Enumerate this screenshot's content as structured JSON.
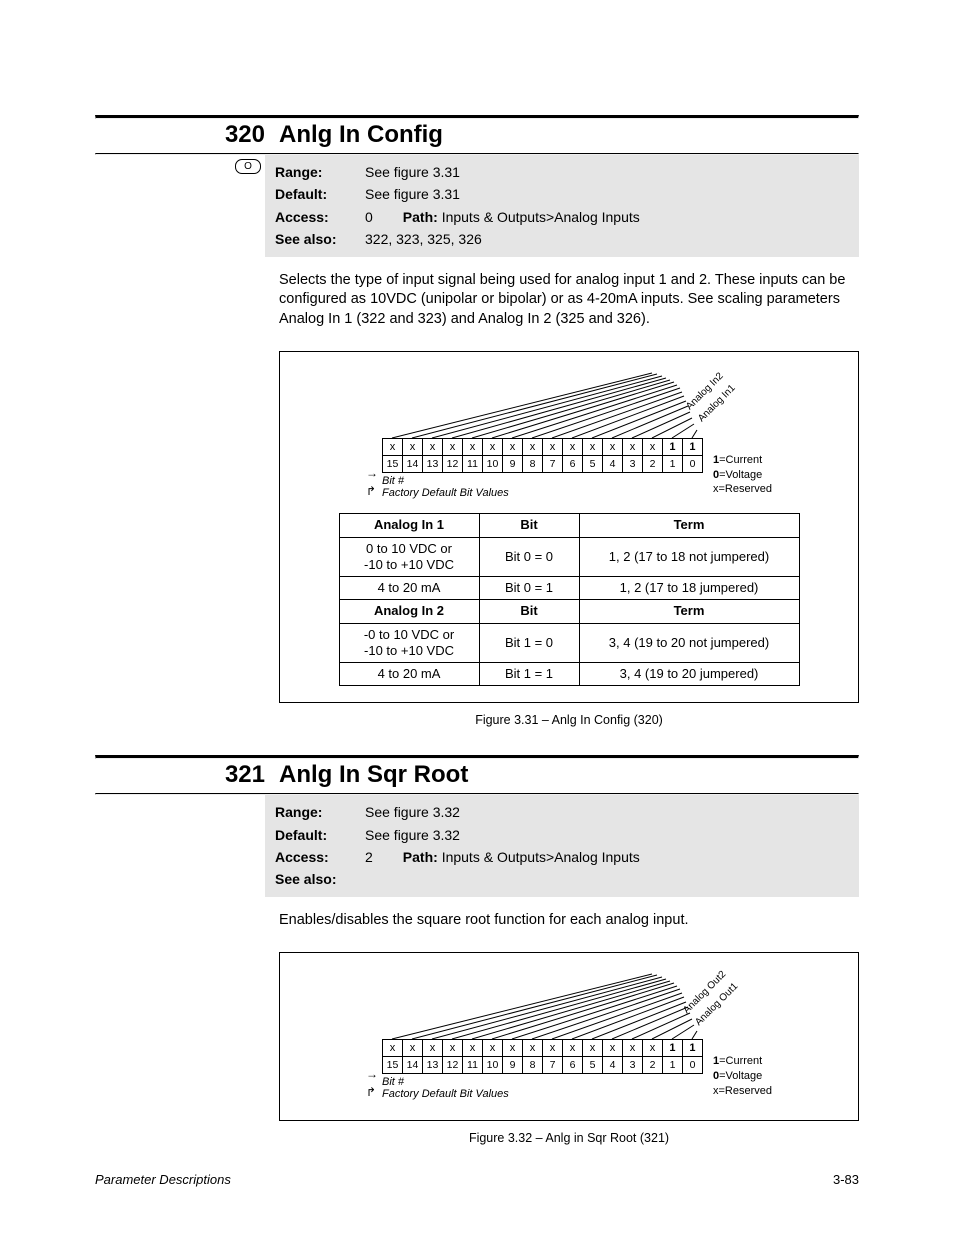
{
  "params": [
    {
      "num": "320",
      "title": "Anlg In Config",
      "hasIcon": true,
      "range": "See figure 3.31",
      "default": "See figure 3.31",
      "access": "0",
      "path": "Inputs & Outputs>Analog Inputs",
      "seeAlso": "322, 323, 325, 326",
      "desc": "Selects the type of input signal being used for analog input 1 and 2. These inputs can be configured as 10VDC (unipolar or bipolar) or as 4-20mA inputs. See scaling parameters Analog In 1 (322 and 323) and Analog In 2 (325 and 326).",
      "bitDiagram": {
        "topRow": [
          "x",
          "x",
          "x",
          "x",
          "x",
          "x",
          "x",
          "x",
          "x",
          "x",
          "x",
          "x",
          "x",
          "x",
          "1",
          "1"
        ],
        "numRow": [
          "15",
          "14",
          "13",
          "12",
          "11",
          "10",
          "9",
          "8",
          "7",
          "6",
          "5",
          "4",
          "3",
          "2",
          "1",
          "0"
        ],
        "bitLabel": "Bit #",
        "factoryLabel": "Factory Default Bit Values",
        "axisLabels": [
          "Analog In2",
          "Analog In1"
        ],
        "legend": [
          {
            "k": "1",
            "v": "Current"
          },
          {
            "k": "0",
            "v": "Voltage"
          },
          {
            "k": "x",
            "v": "Reserved"
          }
        ]
      },
      "cfgTable": {
        "sections": [
          {
            "header": [
              "Analog In 1",
              "Bit",
              "Term"
            ],
            "rows": [
              [
                "0 to 10 VDC or\n-10 to +10 VDC",
                "Bit 0 = 0",
                "1, 2 (17 to 18 not jumpered)"
              ],
              [
                "4 to 20 mA",
                "Bit 0 = 1",
                "1, 2 (17 to 18 jumpered)"
              ]
            ]
          },
          {
            "header": [
              "Analog In 2",
              "Bit",
              "Term"
            ],
            "rows": [
              [
                "-0 to 10 VDC or\n-10 to +10 VDC",
                "Bit 1 = 0",
                "3, 4 (19 to 20 not jumpered)"
              ],
              [
                "4 to 20 mA",
                "Bit 1 = 1",
                "3, 4 (19 to 20 jumpered)"
              ]
            ]
          }
        ]
      },
      "figCaption": "Figure 3.31 – Anlg In Config (320)"
    },
    {
      "num": "321",
      "title": "Anlg In Sqr Root",
      "hasIcon": false,
      "range": "See figure 3.32",
      "default": "See figure 3.32",
      "access": "2",
      "path": "Inputs & Outputs>Analog Inputs",
      "seeAlso": "",
      "desc": "Enables/disables the square root function for each analog input.",
      "bitDiagram": {
        "topRow": [
          "x",
          "x",
          "x",
          "x",
          "x",
          "x",
          "x",
          "x",
          "x",
          "x",
          "x",
          "x",
          "x",
          "x",
          "1",
          "1"
        ],
        "numRow": [
          "15",
          "14",
          "13",
          "12",
          "11",
          "10",
          "9",
          "8",
          "7",
          "6",
          "5",
          "4",
          "3",
          "2",
          "1",
          "0"
        ],
        "bitLabel": "Bit #",
        "factoryLabel": "Factory Default Bit Values",
        "axisLabels": [
          "Analog Out2",
          "Analog Out1"
        ],
        "legend": [
          {
            "k": "1",
            "v": "Current"
          },
          {
            "k": "0",
            "v": "Voltage"
          },
          {
            "k": "x",
            "v": "Reserved"
          }
        ]
      },
      "figCaption": "Figure 3.32 – Anlg in Sqr Root (321)"
    }
  ],
  "labels": {
    "range": "Range:",
    "default": "Default:",
    "access": "Access:",
    "path": "Path:",
    "seeAlso": "See also:"
  },
  "footer": {
    "left": "Parameter Descriptions",
    "right": "3-83"
  },
  "colors": {
    "metaBg": "#e5e5e5"
  }
}
